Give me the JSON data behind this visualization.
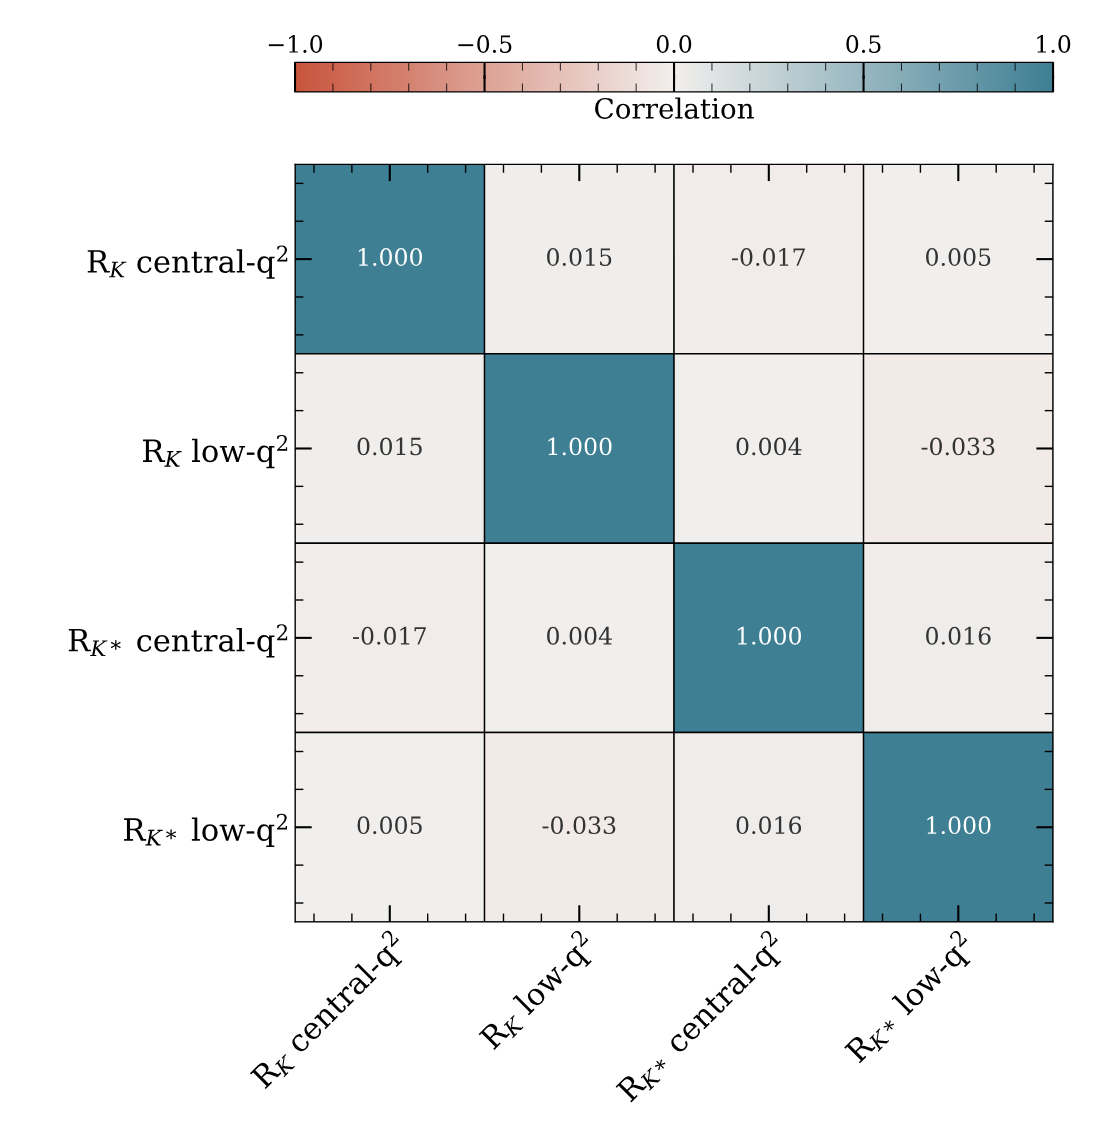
{
  "chart_data": {
    "type": "heatmap",
    "clabel": "Correlation",
    "categories": [
      "R$_{K}$ central-q$^{2}$",
      "R$_{K}$ low-q$^{2}$",
      "R$_{K*}$ central-q$^{2}$",
      "R$_{K*}$ low-q$^{2}$"
    ],
    "y_categories": [
      "R$_{K}$ central-q$^{2}$",
      "R$_{K}$ low-q$^{2}$",
      "R$_{K*}$ central-q$^{2}$",
      "R$_{K*}$ low-q$^{2}$"
    ],
    "cells": [
      [
        1.0,
        0.015,
        -0.017,
        0.005
      ],
      [
        0.015,
        1.0,
        0.004,
        -0.033
      ],
      [
        -0.017,
        0.004,
        1.0,
        0.016
      ],
      [
        0.005,
        -0.033,
        0.016,
        1.0
      ]
    ],
    "cell_labels": [
      [
        "1.000",
        "0.015",
        "-0.017",
        "0.005"
      ],
      [
        "0.015",
        "1.000",
        "0.004",
        "-0.033"
      ],
      [
        "-0.017",
        "0.004",
        "1.000",
        "0.016"
      ],
      [
        "0.005",
        "-0.033",
        "0.016",
        "1.000"
      ]
    ],
    "clim": [
      -1.0,
      1.0
    ],
    "cticks": [
      {
        "value": -1.0,
        "label": "−1.0"
      },
      {
        "value": -0.5,
        "label": "−0.5"
      },
      {
        "value": 0,
        "label": "0.0"
      },
      0.5,
      {
        "value": 1,
        "label": "1.0"
      }
    ]
  }
}
